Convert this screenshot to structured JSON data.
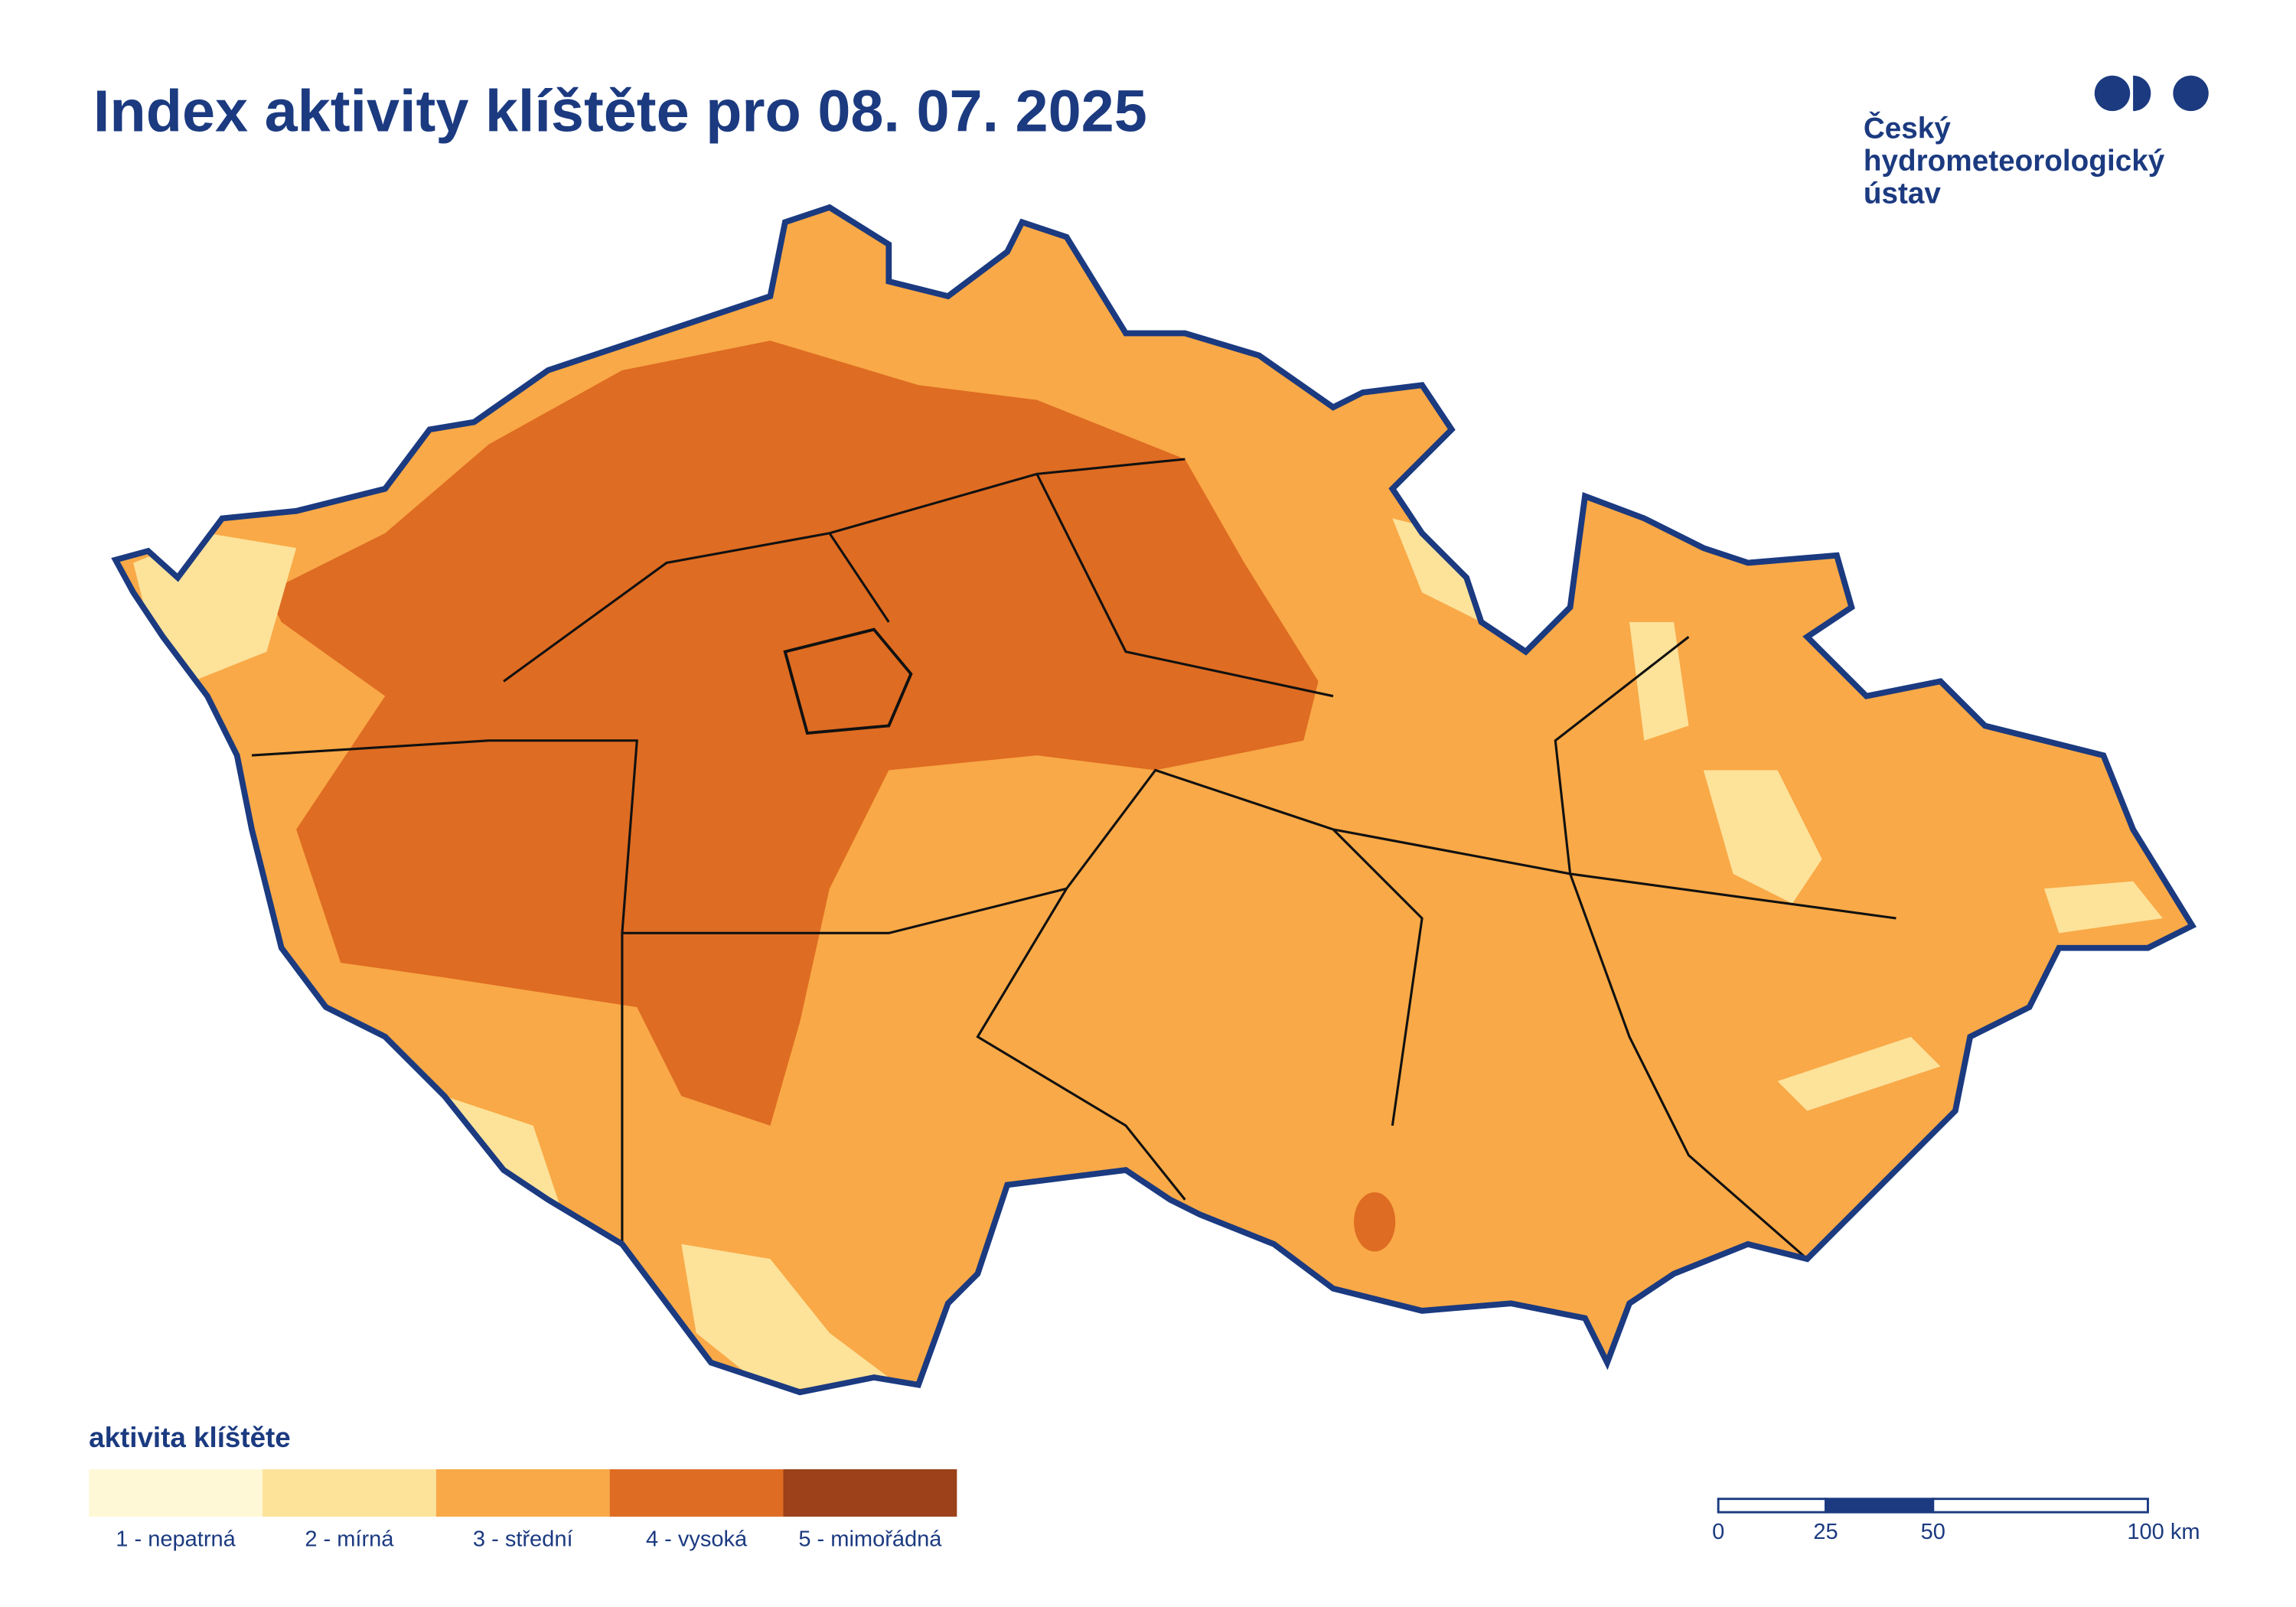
{
  "header": {
    "title": "Index aktivity klíštěte pro 08. 07. 2025"
  },
  "logo": {
    "lines": [
      "Český",
      "hydrometeorologický",
      "ústav"
    ]
  },
  "legend": {
    "title": "aktivita klíštěte",
    "items": [
      {
        "label": "1 - nepatrná",
        "color": "#fff8d6"
      },
      {
        "label": "2 - mírná",
        "color": "#fde29a"
      },
      {
        "label": "3 - střední",
        "color": "#f9a947"
      },
      {
        "label": "4 - vysoká",
        "color": "#de6c22"
      },
      {
        "label": "5 - mimořádná",
        "color": "#9c4119"
      }
    ]
  },
  "scale_bar": {
    "ticks": [
      0,
      25,
      50,
      {
        "value": 100,
        "label": "100 km"
      }
    ]
  }
}
